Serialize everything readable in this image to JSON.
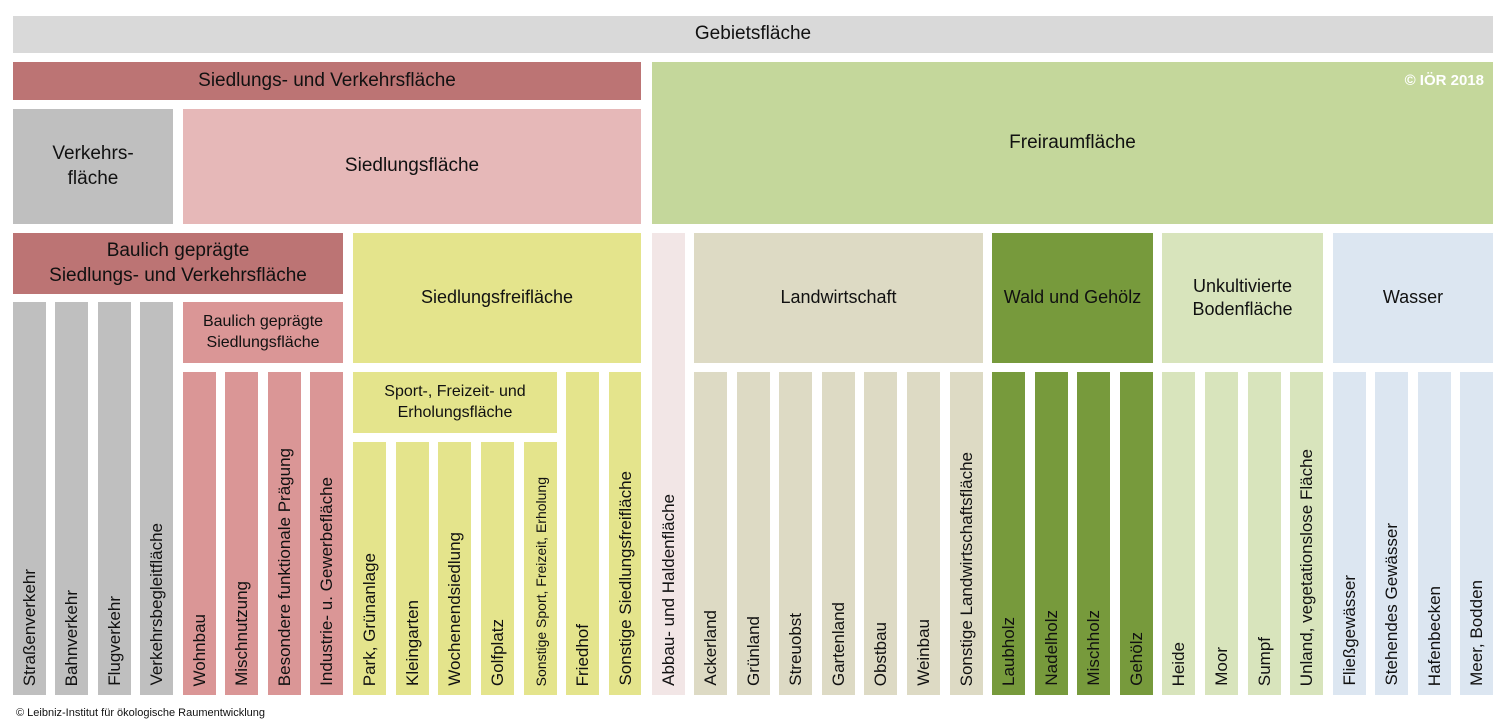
{
  "top": {
    "area": "Gebietsfläche",
    "settlement_transport": "Siedlungs- und Verkehrsfläche",
    "open_space": "Freiraumfläche",
    "copyright_badge": "© IÖR 2018"
  },
  "mid": {
    "traffic": "Verkehrs-\nfläche",
    "settlement": "Siedlungsfläche"
  },
  "groups": {
    "built_settlement_transport": "Baulich geprägte\nSiedlungs- und Verkehrsfläche",
    "built_settlement": "Baulich geprägte\nSiedlungsfläche",
    "settlement_open": "Siedlungsfreifläche",
    "sport": "Sport-, Freizeit- und\nErholungsfläche",
    "agriculture": "Landwirtschaft",
    "forest": "Wald und Gehölz",
    "uncultivated": "Unkultivierte\nBodenfläche",
    "water": "Wasser"
  },
  "leaves": {
    "strassenverkehr": "Straßenverkehr",
    "bahnverkehr": "Bahnverkehr",
    "flugverkehr": "Flugverkehr",
    "verkehrsbegleit": "Verkehrsbegleitfläche",
    "wohnbau": "Wohnbau",
    "mischnutzung": "Mischnutzung",
    "besondere": "Besondere funktionale Prägung",
    "industrie": "Industrie- u. Gewerbefläche",
    "park": "Park, Grünanlage",
    "kleingarten": "Kleingarten",
    "wochenend": "Wochenendsiedlung",
    "golfplatz": "Golfplatz",
    "sonstige_sport": "Sonstige Sport, Freizeit, Erholung",
    "friedhof": "Friedhof",
    "sonstige_siedlungsfrei": "Sonstige Siedlungsfreifläche",
    "abbau": "Abbau- und Haldenfläche",
    "ackerland": "Ackerland",
    "gruenland": "Grünland",
    "streuobst": "Streuobst",
    "gartenland": "Gartenland",
    "obstbau": "Obstbau",
    "weinbau": "Weinbau",
    "sonstige_landwirtschaft": "Sonstige Landwirtschaftsfläche",
    "laubholz": "Laubholz",
    "nadelholz": "Nadelholz",
    "mischholz": "Mischholz",
    "gehoelz": "Gehölz",
    "heide": "Heide",
    "moor": "Moor",
    "sumpf": "Sumpf",
    "unland": "Unland, vegetationslose Fläche",
    "fliess": "Fließgewässer",
    "stehend": "Stehendes Gewässer",
    "hafen": "Hafenbecken",
    "meer": "Meer, Bodden"
  },
  "footer": "© Leibniz-Institut für ökologische Raumentwicklung",
  "colors": {
    "gray_top": "#d9d9d9",
    "red_dark": "#bc7474",
    "red_light": "#e6b8b8",
    "red_leaf": "#da9696",
    "gray_mid": "#bfbfbf",
    "yellow": "#e4e48c",
    "green_light": "#c4d79b",
    "pink_pale": "#f2e6e6",
    "beige": "#dddac4",
    "green_dark": "#779a3c",
    "green_pale": "#d8e4bc",
    "blue_pale": "#dce6f1"
  }
}
